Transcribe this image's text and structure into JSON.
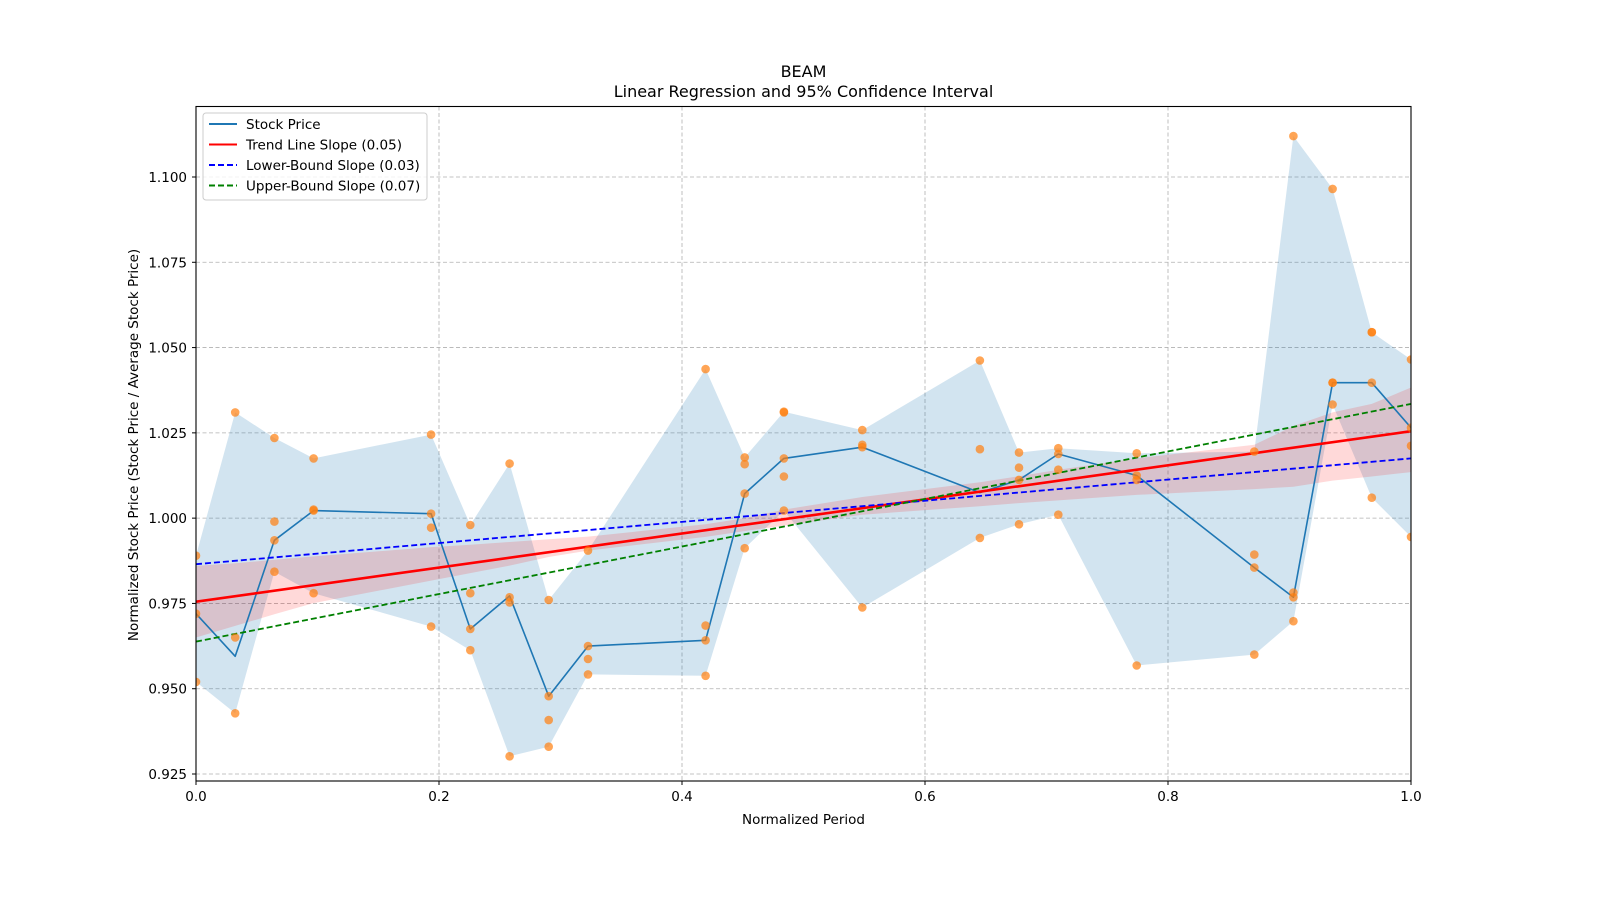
{
  "chart_data": {
    "type": "line",
    "title": "BEAM",
    "subtitle": "Linear Regression and 95% Confidence Interval",
    "xlabel": "Normalized Period",
    "ylabel": "Normalized Stock Price (Stock Price / Average Stock Price)",
    "xlim": [
      0.0,
      1.0
    ],
    "ylim": [
      0.922,
      1.12
    ],
    "xticks": [
      "0.0",
      "0.2",
      "0.4",
      "0.6",
      "0.8",
      "1.0"
    ],
    "xtick_values": [
      0.0,
      0.2,
      0.4,
      0.6,
      0.8,
      1.0
    ],
    "yticks": [
      "0.925",
      "0.950",
      "0.975",
      "1.000",
      "1.025",
      "1.050",
      "1.075",
      "1.100"
    ],
    "ytick_values": [
      0.925,
      0.95,
      0.975,
      1.0,
      1.025,
      1.05,
      1.075,
      1.1
    ],
    "grid": true,
    "legend_position": "top-left",
    "legend": [
      {
        "label": "Stock Price",
        "color": "#1f77b4",
        "style": "solid"
      },
      {
        "label": "Trend Line Slope (0.05)",
        "color": "#ff0000",
        "style": "solid"
      },
      {
        "label": "Lower-Bound Slope (0.03)",
        "color": "#0000ff",
        "style": "dashed"
      },
      {
        "label": "Upper-Bound Slope (0.07)",
        "color": "#008000",
        "style": "dashed"
      }
    ],
    "colors": {
      "stock": "#1f77b4",
      "band": "#1f77b4",
      "scatter": "#ff7f0e",
      "trend": "#ff0000",
      "trend_ci": "#ff0000",
      "lower": "#0000ff",
      "upper": "#008000",
      "grid": "#b0b0b0"
    },
    "series": [
      {
        "name": "Stock Price",
        "x": [
          0.0,
          0.0323,
          0.0645,
          0.0968,
          0.1935,
          0.2258,
          0.2581,
          0.2903,
          0.3226,
          0.4194,
          0.4516,
          0.4839,
          0.5484,
          0.6452,
          0.6774,
          0.7097,
          0.7742,
          0.871,
          0.9032,
          0.9355,
          0.9677,
          1.0
        ],
        "y": [
          0.972,
          0.9595,
          0.9935,
          1.0022,
          1.0013,
          0.9675,
          0.9772,
          0.9478,
          0.9625,
          0.9642,
          1.0072,
          1.0175,
          1.0208,
          1.0075,
          1.0112,
          1.0188,
          1.0125,
          0.9855,
          0.9768,
          1.0397,
          1.0397,
          1.0265
        ]
      },
      {
        "name": "Band Upper",
        "x": [
          0.0,
          0.0323,
          0.0645,
          0.0968,
          0.1935,
          0.2258,
          0.2581,
          0.2903,
          0.3226,
          0.4194,
          0.4516,
          0.4839,
          0.5484,
          0.6452,
          0.6774,
          0.7097,
          0.7742,
          0.871,
          0.9032,
          0.9355,
          0.9677,
          1.0
        ],
        "y": [
          0.989,
          1.031,
          1.0235,
          1.0175,
          1.0245,
          0.998,
          1.016,
          0.976,
          0.9905,
          1.0437,
          1.0178,
          1.0312,
          1.0258,
          1.0462,
          1.0192,
          1.0205,
          1.019,
          1.0195,
          1.112,
          1.0965,
          1.0545,
          1.0465
        ]
      },
      {
        "name": "Band Lower",
        "x": [
          0.0,
          0.0323,
          0.0645,
          0.0968,
          0.1935,
          0.2258,
          0.2581,
          0.2903,
          0.3226,
          0.4194,
          0.4516,
          0.4839,
          0.5484,
          0.6452,
          0.6774,
          0.7097,
          0.7742,
          0.871,
          0.9032,
          0.9355,
          0.9677,
          1.0
        ],
        "y": [
          0.952,
          0.9428,
          0.9843,
          0.978,
          0.9682,
          0.9613,
          0.9302,
          0.933,
          0.9542,
          0.9538,
          0.9912,
          1.0022,
          0.9738,
          0.9942,
          0.9982,
          1.001,
          0.9568,
          0.96,
          0.9698,
          1.0333,
          1.006,
          0.9945
        ]
      },
      {
        "name": "Trend Line Slope (0.05)",
        "x": [
          0.0,
          1.0
        ],
        "y": [
          0.9755,
          1.0255
        ]
      },
      {
        "name": "Lower-Bound Slope (0.03)",
        "x": [
          0.0,
          1.0
        ],
        "y": [
          0.9865,
          1.0175
        ]
      },
      {
        "name": "Upper-Bound Slope (0.07)",
        "x": [
          0.0,
          1.0
        ],
        "y": [
          0.9638,
          1.0335
        ]
      }
    ],
    "trend_ci": {
      "x": [
        0.0,
        0.0323,
        0.0645,
        0.0968,
        0.1935,
        0.2258,
        0.2581,
        0.2903,
        0.3226,
        0.4194,
        0.4516,
        0.4839,
        0.5484,
        0.6452,
        0.6774,
        0.7097,
        0.7742,
        0.871,
        0.9032,
        0.9355,
        0.9677,
        1.0
      ],
      "upper": [
        0.986,
        0.9868,
        0.9878,
        0.9888,
        0.9915,
        0.9922,
        0.993,
        0.9938,
        0.9946,
        0.9982,
        1.0,
        1.0025,
        1.0062,
        1.0105,
        1.0123,
        1.0142,
        1.0175,
        1.0215,
        1.027,
        1.031,
        1.0335,
        1.0383
      ],
      "lower": [
        0.965,
        0.9684,
        0.9718,
        0.9751,
        0.9817,
        0.9839,
        0.9861,
        0.9886,
        0.9905,
        0.9945,
        0.9962,
        0.9978,
        1.001,
        1.0035,
        1.0044,
        1.0052,
        1.0068,
        1.0085,
        1.0092,
        1.011,
        1.0122,
        1.0135
      ]
    },
    "scatter": {
      "x": [
        0.0,
        0.0,
        0.0,
        0.0323,
        0.0323,
        0.0323,
        0.0645,
        0.0645,
        0.0645,
        0.0645,
        0.0968,
        0.0968,
        0.0968,
        0.0968,
        0.1935,
        0.1935,
        0.1935,
        0.1935,
        0.2258,
        0.2258,
        0.2258,
        0.2258,
        0.2581,
        0.2581,
        0.2581,
        0.2581,
        0.2903,
        0.2903,
        0.2903,
        0.2903,
        0.3226,
        0.3226,
        0.3226,
        0.3226,
        0.4194,
        0.4194,
        0.4194,
        0.4194,
        0.4516,
        0.4516,
        0.4516,
        0.4516,
        0.4839,
        0.4839,
        0.4839,
        0.4839,
        0.4839,
        0.5484,
        0.5484,
        0.5484,
        0.5484,
        0.6452,
        0.6452,
        0.6452,
        0.6774,
        0.6774,
        0.6774,
        0.6774,
        0.7097,
        0.7097,
        0.7097,
        0.7097,
        0.7742,
        0.7742,
        0.7742,
        0.7742,
        0.871,
        0.871,
        0.871,
        0.871,
        0.9032,
        0.9032,
        0.9032,
        0.9032,
        0.9355,
        0.9355,
        0.9355,
        0.9355,
        0.9677,
        0.9677,
        0.9677,
        0.9677,
        1.0,
        1.0,
        1.0,
        1.0
      ],
      "y": [
        0.989,
        0.972,
        0.952,
        1.031,
        0.965,
        0.9428,
        1.0235,
        0.999,
        0.9935,
        0.9843,
        1.0175,
        1.0025,
        1.0022,
        0.978,
        1.0245,
        1.0013,
        0.9972,
        0.9682,
        0.998,
        0.978,
        0.9675,
        0.9613,
        1.016,
        0.9768,
        0.9753,
        0.9302,
        0.976,
        0.9478,
        0.9408,
        0.933,
        0.9905,
        0.9625,
        0.9587,
        0.9542,
        1.0437,
        0.9685,
        0.9642,
        0.9538,
        1.0178,
        1.0158,
        1.0072,
        0.9912,
        1.0312,
        1.031,
        1.0175,
        1.0122,
        1.0022,
        1.0258,
        1.0215,
        1.0208,
        0.9738,
        1.0462,
        1.0202,
        0.9942,
        1.0192,
        1.0148,
        1.0112,
        0.9982,
        1.0205,
        1.0188,
        1.0142,
        1.001,
        1.019,
        1.0125,
        1.0112,
        0.9568,
        1.0195,
        0.9893,
        0.9855,
        0.96,
        1.112,
        0.9782,
        0.9768,
        0.9698,
        1.0965,
        1.0397,
        1.0397,
        1.0333,
        1.0545,
        1.0545,
        1.0397,
        1.006,
        1.0465,
        1.0265,
        1.0212,
        0.9945
      ]
    }
  }
}
